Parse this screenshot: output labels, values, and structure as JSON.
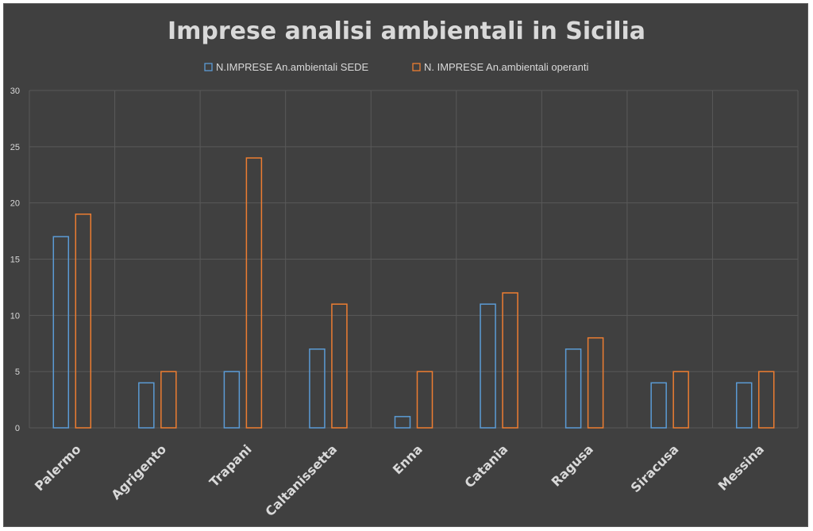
{
  "chart_data": {
    "type": "bar",
    "title": "Imprese analisi ambientali in Sicilia",
    "categories": [
      "Palermo",
      "Agrigento",
      "Trapani",
      "Caltanissetta",
      "Enna",
      "Catania",
      "Ragusa",
      "Siracusa",
      "Messina"
    ],
    "series": [
      {
        "name": "N.IMPRESE An.ambientali SEDE",
        "color": "#5b9bd5",
        "values": [
          17,
          4,
          5,
          7,
          1,
          11,
          7,
          4,
          4
        ]
      },
      {
        "name": "N. IMPRESE An.ambientali operanti",
        "color": "#ed7d31",
        "values": [
          19,
          5,
          24,
          11,
          5,
          12,
          8,
          5,
          5
        ]
      }
    ],
    "ylim": [
      0,
      30
    ],
    "yticks": [
      0,
      5,
      10,
      15,
      20,
      25,
      30
    ],
    "grid": true,
    "legend_position": "top",
    "xlabel": "",
    "ylabel": "",
    "colors": {
      "background": "#404040",
      "grid": "#595959",
      "text": "#d9d9d9"
    }
  }
}
